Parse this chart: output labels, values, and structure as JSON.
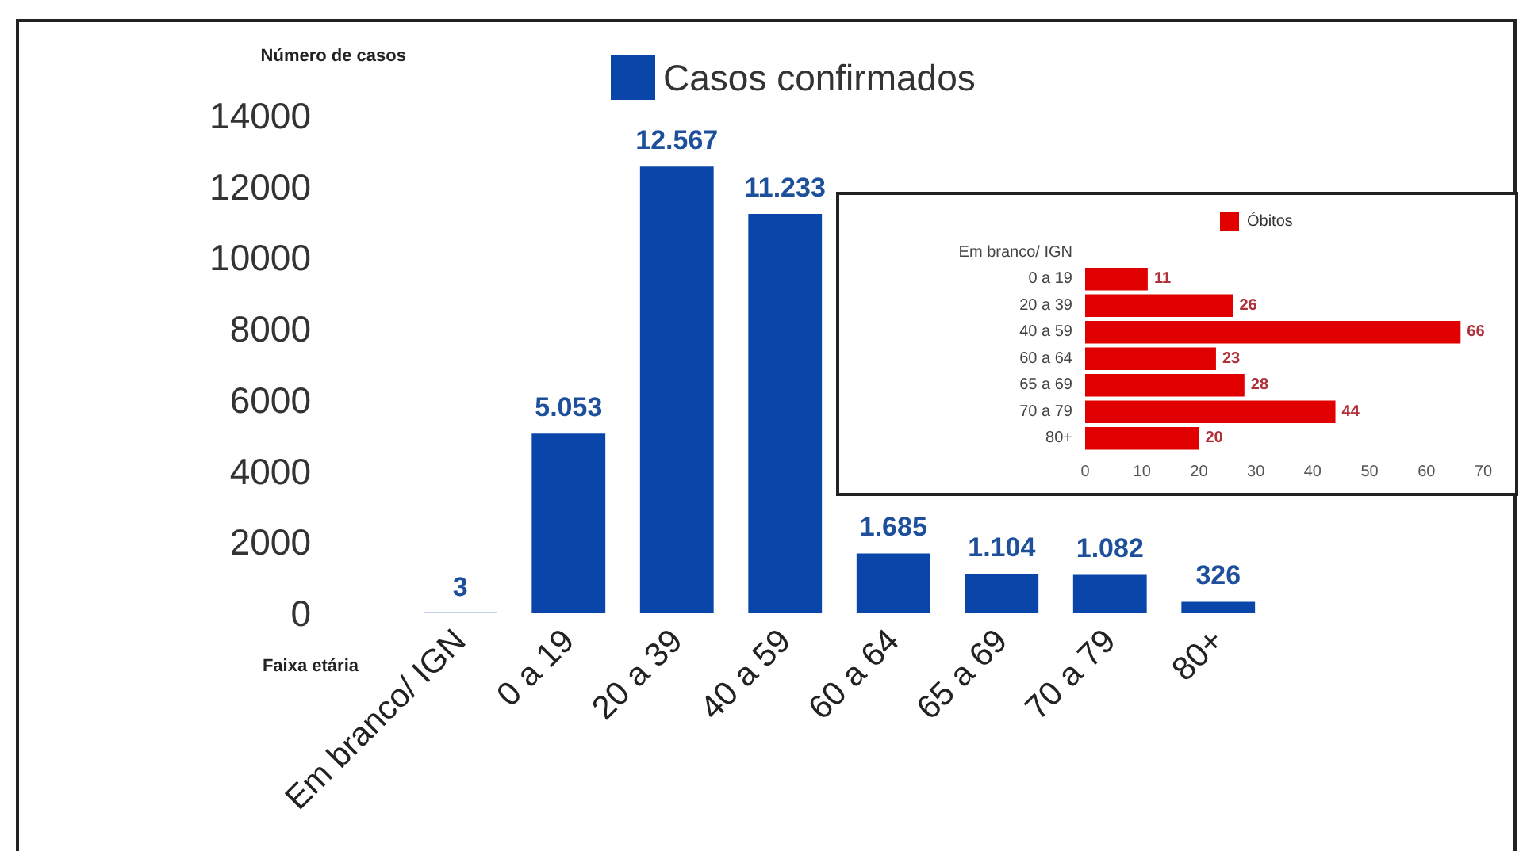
{
  "chart_data": [
    {
      "type": "bar",
      "ylabel": "Número de casos",
      "xlabel": "Faixa etária",
      "legend": "top",
      "categories": [
        "Em branco/ IGN",
        "0 a 19",
        "20 a 39",
        "40 a 59",
        "60 a 64",
        "65 a 69",
        "70 a 79",
        "80+"
      ],
      "series": [
        {
          "name": "Casos confirmados",
          "color": "#0a45aa",
          "values": [
            3,
            5053,
            12567,
            11233,
            1685,
            1104,
            1082,
            326
          ],
          "value_labels": [
            "3",
            "5.053",
            "12.567",
            "11.233",
            "1.685",
            "1.104",
            "1.082",
            "326"
          ]
        }
      ],
      "ylim": [
        0,
        14000
      ],
      "yticks": [
        0,
        2000,
        4000,
        6000,
        8000,
        10000,
        12000,
        14000
      ]
    },
    {
      "type": "bar",
      "orientation": "horizontal",
      "legend": "top",
      "data_labels": true,
      "categories": [
        "Em branco/ IGN",
        "0 a 19",
        "20 a 39",
        "40 a 59",
        "60 a 64",
        "65 a 69",
        "70 a 79",
        "80+"
      ],
      "series": [
        {
          "name": "Óbitos",
          "color": "#e00000",
          "values": [
            null,
            11,
            26,
            66,
            23,
            28,
            44,
            20
          ]
        }
      ],
      "xlim": [
        0,
        70
      ],
      "xticks": [
        0,
        10,
        20,
        30,
        40,
        50,
        60,
        70
      ]
    }
  ]
}
